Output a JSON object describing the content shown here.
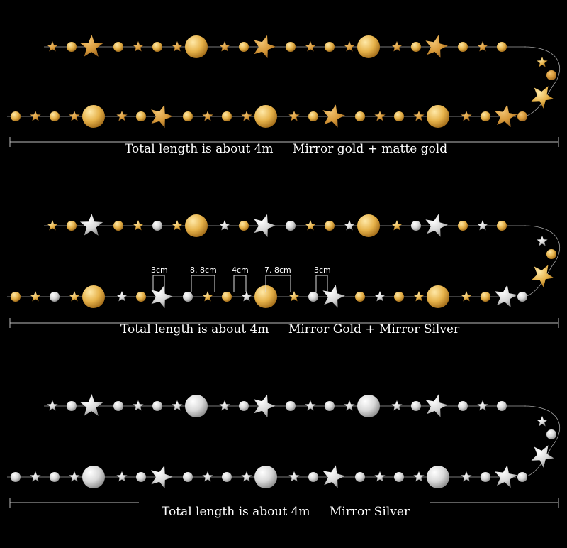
{
  "colors": {
    "background": "#000000",
    "gold_mirror": "#e6b24a",
    "gold_matte": "#d89a3a",
    "silver": "#d8d8d8",
    "string": "#a0a0a0"
  },
  "garlands": [
    {
      "caption_length": "Total length is about 4m",
      "caption_type": "Mirror gold + matte gold",
      "palette": "gold"
    },
    {
      "caption_length": "Total length is about 4m",
      "caption_type": "Mirror Gold + Mirror Silver",
      "palette": "mixed"
    },
    {
      "caption_length": "Total length is about 4m",
      "caption_type": "Mirror Silver",
      "palette": "silver"
    }
  ],
  "measurements": [
    "3cm",
    "8. 8cm",
    "4cm",
    "7. 8cm",
    "3cm"
  ]
}
